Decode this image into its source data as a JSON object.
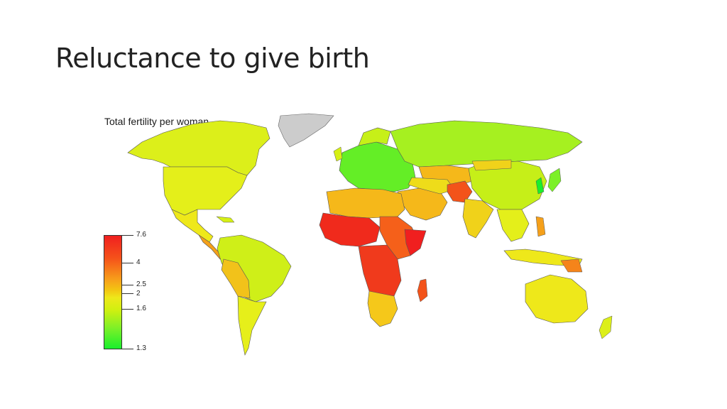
{
  "slide": {
    "title": "Reluctance to give birth"
  },
  "map": {
    "title": "Total fertility per woman",
    "no_data_color": "#cccccc",
    "scale_colors": {
      "7.6": "#f01f1f",
      "4": "#f5601a",
      "2.5": "#f5b81a",
      "2": "#eee81a",
      "1.6": "#c6f216",
      "1.3": "#19ef2c"
    }
  },
  "legend": {
    "ticks": [
      {
        "label": "7.6"
      },
      {
        "label": "4"
      },
      {
        "label": "2.5"
      },
      {
        "label": "2"
      },
      {
        "label": "1.6"
      },
      {
        "label": "1.3"
      }
    ]
  }
}
